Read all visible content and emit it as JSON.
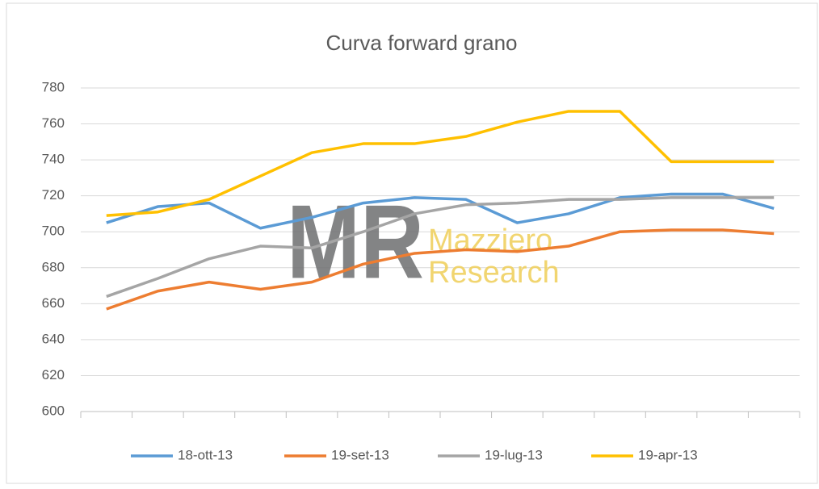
{
  "chart_data": {
    "type": "line",
    "title": "Curva forward grano",
    "categories": [
      null,
      null,
      null,
      null,
      null,
      null,
      null,
      null,
      null,
      null,
      null,
      null,
      null,
      null
    ],
    "series": [
      {
        "name": "18-ott-13",
        "color": "#5b9bd5",
        "values": [
          705,
          714,
          716,
          702,
          708,
          716,
          719,
          718,
          705,
          710,
          719,
          721,
          721,
          713
        ]
      },
      {
        "name": "19-set-13",
        "color": "#ed7d31",
        "values": [
          657,
          667,
          672,
          668,
          672,
          682,
          688,
          690,
          689,
          692,
          700,
          701,
          701,
          699
        ]
      },
      {
        "name": "19-lug-13",
        "color": "#a5a5a5",
        "values": [
          664,
          674,
          685,
          692,
          691,
          700,
          710,
          715,
          716,
          718,
          718,
          719,
          719,
          719
        ]
      },
      {
        "name": "19-apr-13",
        "color": "#ffc000",
        "values": [
          709,
          711,
          718,
          731,
          744,
          749,
          749,
          753,
          761,
          767,
          767,
          739,
          739,
          739
        ]
      }
    ],
    "ylim": [
      600,
      780
    ],
    "yticks": [
      600,
      620,
      640,
      660,
      680,
      700,
      720,
      740,
      760,
      780
    ],
    "grid": true,
    "legend": "bottom",
    "watermark": {
      "logo": "MR",
      "line1": "Mazziero",
      "line2": "Research"
    }
  }
}
